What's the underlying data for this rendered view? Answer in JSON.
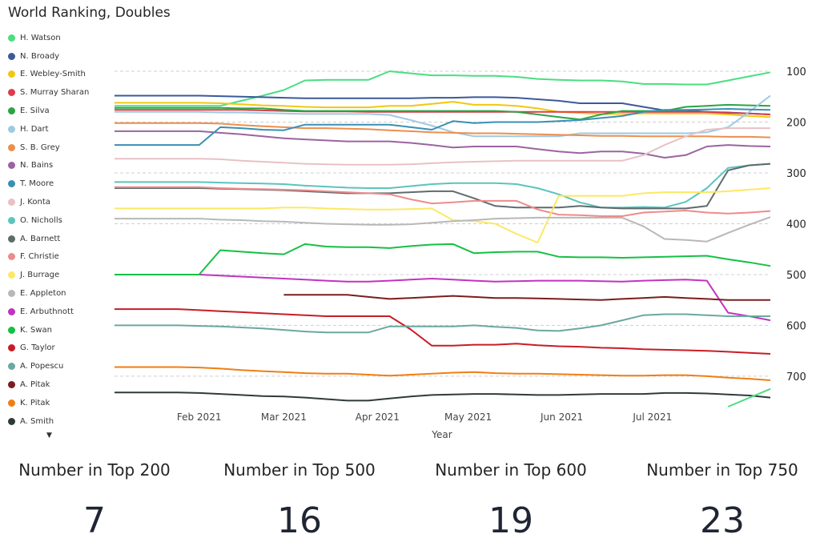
{
  "chart_data": {
    "type": "line",
    "title": "World Ranking, Doubles",
    "xlabel": "Year",
    "ylabel": "",
    "y_axis_position": "right",
    "y_inverted": true,
    "ylim": [
      70,
      760
    ],
    "yticks": [
      100,
      200,
      300,
      400,
      500,
      600,
      700
    ],
    "grid": "horizontal dashed",
    "legend": "left",
    "x": [
      "2021-01-04",
      "2021-01-11",
      "2021-01-18",
      "2021-01-25",
      "2021-02-01",
      "2021-02-08",
      "2021-02-15",
      "2021-02-22",
      "2021-03-01",
      "2021-03-08",
      "2021-03-15",
      "2021-03-22",
      "2021-03-29",
      "2021-04-05",
      "2021-04-12",
      "2021-04-19",
      "2021-04-26",
      "2021-05-03",
      "2021-05-10",
      "2021-05-17",
      "2021-05-24",
      "2021-05-31",
      "2021-06-07",
      "2021-06-14",
      "2021-06-21",
      "2021-06-28",
      "2021-07-05",
      "2021-07-12",
      "2021-07-19",
      "2021-07-26",
      "2021-08-02",
      "2021-08-09"
    ],
    "xticks": [
      {
        "date": "2021-02-01",
        "label": "Feb 2021"
      },
      {
        "date": "2021-03-01",
        "label": "Mar 2021"
      },
      {
        "date": "2021-04-01",
        "label": "Apr 2021"
      },
      {
        "date": "2021-05-01",
        "label": "May 2021"
      },
      {
        "date": "2021-06-01",
        "label": "Jun 2021"
      },
      {
        "date": "2021-07-01",
        "label": "Jul 2021"
      }
    ],
    "series": [
      {
        "name": "H. Watson",
        "color": "#4ade80",
        "values": [
          168,
          168,
          168,
          168,
          168,
          168,
          158,
          148,
          137,
          118,
          117,
          117,
          117,
          100,
          104,
          108,
          108,
          109,
          109,
          111,
          115,
          117,
          118,
          118,
          120,
          125,
          125,
          126,
          126,
          118,
          110,
          102
        ]
      },
      {
        "name": "N. Broady",
        "color": "#3b5a99",
        "values": [
          148,
          148,
          148,
          148,
          148,
          149,
          150,
          151,
          152,
          153,
          153,
          153,
          153,
          153,
          153,
          152,
          152,
          151,
          151,
          152,
          155,
          158,
          163,
          163,
          163,
          170,
          177,
          177,
          180,
          181,
          183,
          185
        ]
      },
      {
        "name": "E. Webley-Smith",
        "color": "#f2c80f",
        "values": [
          162,
          162,
          162,
          162,
          162,
          163,
          165,
          167,
          168,
          170,
          171,
          171,
          171,
          168,
          168,
          164,
          160,
          166,
          166,
          168,
          173,
          180,
          182,
          184,
          184,
          183,
          183,
          183,
          183,
          185,
          188,
          190
        ]
      },
      {
        "name": "S. Murray Sharan",
        "color": "#dc3c4b",
        "values": [
          176,
          176,
          176,
          176,
          176,
          176,
          176,
          177,
          178,
          179,
          179,
          179,
          180,
          180,
          180,
          180,
          180,
          180,
          180,
          180,
          180,
          180,
          180,
          180,
          180,
          180,
          180,
          180,
          180,
          182,
          183,
          185
        ]
      },
      {
        "name": "E. Silva",
        "color": "#2ca444",
        "values": [
          172,
          172,
          172,
          172,
          172,
          172,
          173,
          173,
          176,
          178,
          178,
          178,
          178,
          178,
          178,
          178,
          178,
          178,
          178,
          180,
          185,
          190,
          195,
          185,
          178,
          178,
          178,
          170,
          168,
          166,
          167,
          168
        ]
      },
      {
        "name": "H. Dart",
        "color": "#9ecae1",
        "values": [
          180,
          180,
          180,
          180,
          180,
          181,
          181,
          182,
          183,
          184,
          184,
          184,
          184,
          186,
          196,
          207,
          220,
          228,
          228,
          228,
          228,
          228,
          222,
          222,
          222,
          222,
          222,
          222,
          220,
          210,
          180,
          148
        ]
      },
      {
        "name": "S. B. Grey",
        "color": "#ec8f4e",
        "values": [
          202,
          202,
          202,
          202,
          202,
          203,
          206,
          208,
          210,
          212,
          212,
          213,
          214,
          216,
          218,
          220,
          221,
          222,
          222,
          223,
          224,
          225,
          226,
          227,
          227,
          228,
          228,
          228,
          228,
          229,
          229,
          230
        ]
      },
      {
        "name": "N. Bains",
        "color": "#9a64a0",
        "values": [
          218,
          218,
          218,
          218,
          218,
          221,
          224,
          228,
          232,
          234,
          236,
          238,
          238,
          238,
          241,
          245,
          250,
          248,
          248,
          248,
          253,
          258,
          261,
          258,
          258,
          262,
          270,
          265,
          248,
          245,
          247,
          248
        ]
      },
      {
        "name": "T. Moore",
        "color": "#3a8fb5",
        "values": [
          245,
          245,
          245,
          245,
          245,
          210,
          212,
          215,
          216,
          205,
          205,
          205,
          205,
          205,
          210,
          215,
          198,
          202,
          200,
          200,
          200,
          198,
          196,
          192,
          188,
          180,
          176,
          176,
          175,
          174,
          175,
          176
        ]
      },
      {
        "name": "J. Konta",
        "color": "#e8c1c5",
        "values": [
          272,
          272,
          272,
          272,
          272,
          273,
          276,
          278,
          280,
          282,
          283,
          284,
          284,
          284,
          283,
          281,
          279,
          278,
          277,
          276,
          276,
          276,
          276,
          276,
          276,
          265,
          245,
          228,
          215,
          212,
          212,
          212
        ]
      },
      {
        "name": "O. Nicholls",
        "color": "#5bc4be",
        "values": [
          318,
          318,
          318,
          318,
          318,
          319,
          320,
          321,
          322,
          325,
          327,
          329,
          330,
          330,
          326,
          322,
          320,
          320,
          320,
          322,
          330,
          342,
          358,
          368,
          368,
          367,
          368,
          357,
          330,
          290,
          285,
          282
        ]
      },
      {
        "name": "A. Barnett",
        "color": "#5f6b6d",
        "values": [
          330,
          330,
          330,
          330,
          330,
          331,
          332,
          333,
          334,
          336,
          338,
          340,
          340,
          340,
          338,
          336,
          336,
          350,
          365,
          368,
          368,
          368,
          365,
          368,
          370,
          370,
          370,
          370,
          365,
          295,
          285,
          282
        ]
      },
      {
        "name": "F. Christie",
        "color": "#ee8b8b",
        "values": [
          328,
          328,
          328,
          328,
          328,
          330,
          331,
          332,
          333,
          334,
          336,
          338,
          340,
          342,
          352,
          360,
          358,
          355,
          355,
          355,
          372,
          382,
          383,
          385,
          385,
          378,
          376,
          374,
          378,
          380,
          378,
          375
        ]
      },
      {
        "name": "J. Burrage",
        "color": "#fce864",
        "values": [
          370,
          370,
          370,
          370,
          370,
          370,
          370,
          370,
          368,
          368,
          370,
          371,
          372,
          372,
          371,
          370,
          393,
          395,
          400,
          420,
          437,
          345,
          345,
          345,
          345,
          340,
          338,
          338,
          338,
          336,
          333,
          330
        ]
      },
      {
        "name": "E. Appleton",
        "color": "#b8b8b8",
        "values": [
          390,
          390,
          390,
          390,
          390,
          392,
          393,
          395,
          396,
          398,
          400,
          401,
          402,
          402,
          401,
          398,
          395,
          393,
          390,
          389,
          388,
          388,
          388,
          388,
          388,
          405,
          430,
          432,
          435,
          418,
          402,
          387
        ]
      },
      {
        "name": "E. Arbuthnott",
        "color": "#c133c1",
        "values": [
          500,
          500,
          500,
          500,
          500,
          502,
          504,
          506,
          508,
          510,
          512,
          514,
          514,
          512,
          510,
          508,
          510,
          512,
          514,
          513,
          512,
          512,
          512,
          513,
          514,
          512,
          511,
          510,
          512,
          575,
          582,
          590
        ]
      },
      {
        "name": "K. Swan",
        "color": "#16c043",
        "values": [
          500,
          500,
          500,
          500,
          500,
          452,
          455,
          458,
          460,
          440,
          445,
          446,
          446,
          448,
          444,
          441,
          440,
          458,
          456,
          455,
          455,
          465,
          466,
          466,
          467,
          466,
          465,
          464,
          463,
          470,
          476,
          483
        ]
      },
      {
        "name": "G. Taylor",
        "color": "#c81d25",
        "values": [
          568,
          568,
          568,
          568,
          570,
          572,
          574,
          576,
          578,
          580,
          582,
          582,
          582,
          582,
          608,
          640,
          640,
          638,
          638,
          636,
          639,
          641,
          642,
          644,
          645,
          647,
          648,
          649,
          650,
          652,
          654,
          656
        ]
      },
      {
        "name": "A. Popescu",
        "color": "#6aa8a0",
        "values": [
          600,
          600,
          600,
          600,
          601,
          602,
          604,
          606,
          609,
          612,
          614,
          614,
          614,
          602,
          602,
          602,
          602,
          600,
          603,
          605,
          610,
          611,
          606,
          600,
          590,
          580,
          578,
          578,
          580,
          582,
          582,
          582
        ]
      },
      {
        "name": "A. Pitak",
        "color": "#7a1e1e",
        "values": [
          null,
          null,
          null,
          null,
          null,
          null,
          null,
          null,
          540,
          540,
          540,
          540,
          544,
          548,
          546,
          544,
          542,
          544,
          546,
          546,
          547,
          548,
          549,
          550,
          548,
          546,
          544,
          546,
          548,
          550,
          550,
          550
        ]
      },
      {
        "name": "K. Pitak",
        "color": "#f07e13",
        "values": [
          682,
          682,
          682,
          682,
          683,
          685,
          688,
          690,
          692,
          694,
          695,
          695,
          697,
          699,
          697,
          695,
          693,
          692,
          694,
          695,
          695,
          696,
          697,
          698,
          699,
          699,
          698,
          698,
          700,
          703,
          705,
          708
        ]
      },
      {
        "name": "A. Smith",
        "color": "#303a3b",
        "values": [
          732,
          732,
          732,
          732,
          733,
          735,
          737,
          739,
          740,
          742,
          745,
          748,
          748,
          744,
          740,
          737,
          736,
          735,
          735,
          736,
          737,
          737,
          736,
          735,
          735,
          735,
          733,
          733,
          734,
          736,
          738,
          742
        ]
      }
    ],
    "extra_segment": {
      "series": "H. Watson",
      "from": {
        "date": "2021-07-26",
        "value": 760
      },
      "to": {
        "date": "2021-08-09",
        "value": 725
      }
    }
  },
  "legend_more_icon": "triangle-down-icon",
  "kpis": [
    {
      "label": "Number in Top 200",
      "value": "7"
    },
    {
      "label": "Number in Top 500",
      "value": "16"
    },
    {
      "label": "Number in Top 600",
      "value": "19"
    },
    {
      "label": "Number in Top 750",
      "value": "23"
    }
  ]
}
